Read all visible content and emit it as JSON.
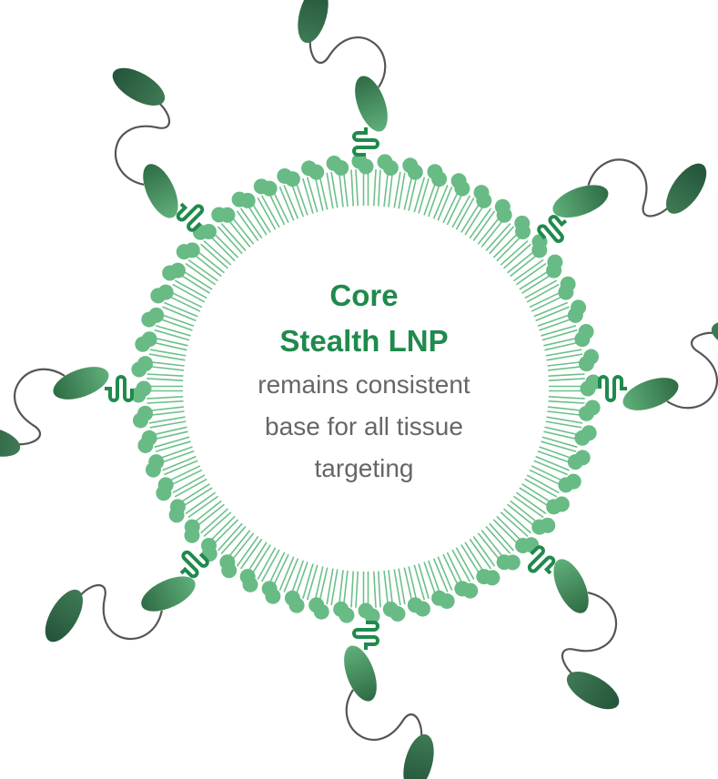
{
  "title": [
    "Core",
    "Stealth LNP"
  ],
  "description": [
    "remains consistent",
    "base for all tissue",
    "targeting"
  ]
}
